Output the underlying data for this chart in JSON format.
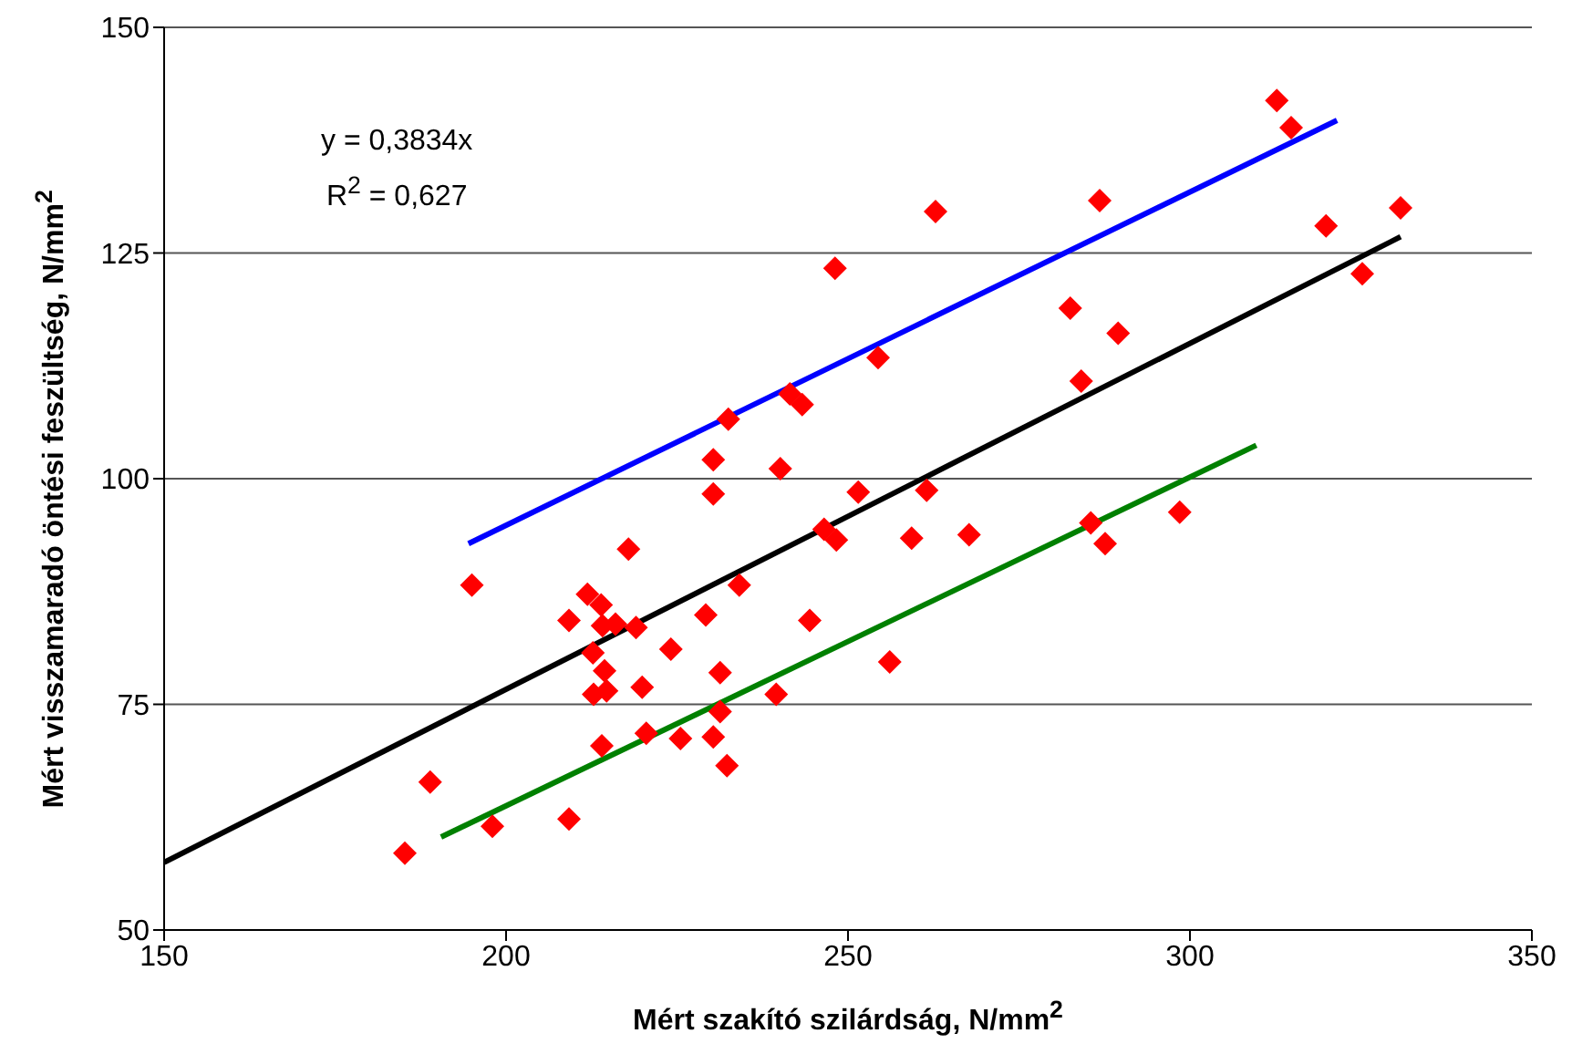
{
  "chart_data": {
    "type": "scatter",
    "xlabel": "Mért szakító szilárdság, N/mm$^{2}$",
    "ylabel": "Mért visszamaradó öntési feszültség, N/mm$^{2}$",
    "annotations": [
      "y = 0,3834x",
      "R$^{2}$ = 0,627"
    ],
    "xlim": [
      150,
      350
    ],
    "xticks": [
      150,
      200,
      250,
      300,
      350
    ],
    "ylim": [
      50,
      150
    ],
    "yticks": [
      50,
      75,
      100,
      125,
      150
    ],
    "grid": "y",
    "series": [
      {
        "color": "#ff0000",
        "marker": "diamond",
        "x": [
          185.2,
          188.9,
          198,
          195,
          209.2,
          209.2,
          211.9,
          212.7,
          213.9,
          214.1,
          216,
          217.9,
          219,
          214.4,
          214.7,
          212.8,
          219.9,
          214,
          220.5,
          224.1,
          225.5,
          229.2,
          230.3,
          230.3,
          230.3,
          231.3,
          231.3,
          232.3,
          232.5,
          234.1,
          240.1,
          239.5,
          241.5,
          243.3,
          244.4,
          246.5,
          248.3,
          248.1,
          251.5,
          254.4,
          256.1,
          259.3,
          261.5,
          262.8,
          267.7,
          282.5,
          284.1,
          285.5,
          286.8,
          287.6,
          289.5,
          298.5,
          312.7,
          314.8,
          319.9,
          325.2,
          330.8
        ],
        "values": [
          58.5,
          66.4,
          61.5,
          88.2,
          62.3,
          84.3,
          87.2,
          80.7,
          86,
          83.7,
          83.9,
          92.2,
          83.5,
          78.7,
          76.5,
          76.1,
          76.9,
          70.4,
          71.8,
          81.1,
          71.2,
          84.9,
          98.3,
          102.1,
          71.4,
          78.5,
          74.2,
          68.2,
          106.6,
          88.2,
          101.1,
          76.1,
          109.4,
          108.2,
          84.3,
          94.4,
          93.2,
          123.3,
          98.5,
          113.4,
          79.7,
          93.4,
          98.7,
          129.6,
          93.8,
          118.9,
          110.8,
          95.1,
          130.8,
          92.8,
          116.1,
          96.3,
          141.9,
          138.9,
          128,
          122.7,
          130
        ]
      },
      {
        "type": "line",
        "color": "#000000",
        "line_style": "solid",
        "marker": "none",
        "x": [
          150,
          330.8
        ],
        "values": [
          57.5,
          126.8
        ]
      },
      {
        "type": "line",
        "color": "#0000ff",
        "line_style": "solid",
        "marker": "none",
        "x": [
          194.5,
          321.5
        ],
        "values": [
          92.8,
          139.7
        ]
      },
      {
        "type": "line",
        "color": "#008000",
        "line_style": "solid",
        "marker": "none",
        "x": [
          190.5,
          309.7
        ],
        "values": [
          60.3,
          103.7
        ]
      }
    ]
  }
}
